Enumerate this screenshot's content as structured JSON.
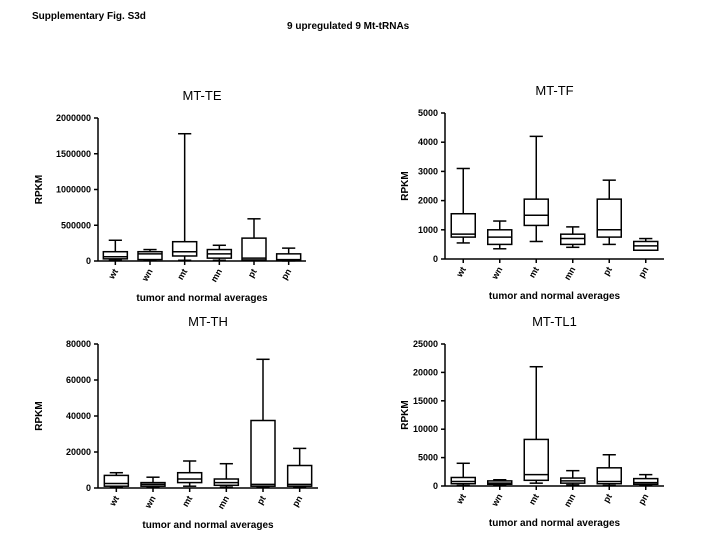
{
  "figure": {
    "label": "Supplementary Fig. S3d",
    "title": "9 upregulated 9 Mt-tRNAs"
  },
  "chart_data": [
    {
      "type": "box",
      "title": "MT-TE",
      "xlabel": "tumor and normal averages",
      "ylabel": "RPKM",
      "ylim": [
        0,
        2000000
      ],
      "yticks": [
        0,
        500000,
        1000000,
        1500000,
        2000000
      ],
      "categories": [
        "wt",
        "wn",
        "mt",
        "mn",
        "pt",
        "pn"
      ],
      "boxes": [
        {
          "min": 10000,
          "q1": 30000,
          "median": 60000,
          "q3": 130000,
          "max": 290000
        },
        {
          "min": 5000,
          "q1": 20000,
          "median": 100000,
          "q3": 130000,
          "max": 160000
        },
        {
          "min": 10000,
          "q1": 70000,
          "median": 130000,
          "q3": 270000,
          "max": 1780000
        },
        {
          "min": 10000,
          "q1": 40000,
          "median": 100000,
          "q3": 160000,
          "max": 220000
        },
        {
          "min": 5000,
          "q1": 15000,
          "median": 40000,
          "q3": 320000,
          "max": 590000
        },
        {
          "min": 2000,
          "q1": 5000,
          "median": 20000,
          "q3": 100000,
          "max": 180000
        }
      ]
    },
    {
      "type": "box",
      "title": "MT-TF",
      "xlabel": "tumor and normal averages",
      "ylabel": "RPKM",
      "ylim": [
        0,
        5000
      ],
      "yticks": [
        0,
        1000,
        2000,
        3000,
        4000,
        5000
      ],
      "categories": [
        "wt",
        "wn",
        "mt",
        "mn",
        "pt",
        "pn"
      ],
      "boxes": [
        {
          "min": 550,
          "q1": 750,
          "median": 850,
          "q3": 1550,
          "max": 3100
        },
        {
          "min": 350,
          "q1": 500,
          "median": 750,
          "q3": 1000,
          "max": 1300
        },
        {
          "min": 600,
          "q1": 1150,
          "median": 1500,
          "q3": 2050,
          "max": 4200
        },
        {
          "min": 400,
          "q1": 500,
          "median": 700,
          "q3": 850,
          "max": 1100
        },
        {
          "min": 500,
          "q1": 750,
          "median": 1000,
          "q3": 2050,
          "max": 2700
        },
        {
          "min": 300,
          "q1": 300,
          "median": 450,
          "q3": 600,
          "max": 700
        }
      ]
    },
    {
      "type": "box",
      "title": "MT-TH",
      "xlabel": "tumor and normal averages",
      "ylabel": "RPKM",
      "ylim": [
        0,
        80000
      ],
      "yticks": [
        0,
        20000,
        40000,
        60000,
        80000
      ],
      "categories": [
        "wt",
        "wn",
        "mt",
        "mn",
        "pt",
        "pn"
      ],
      "boxes": [
        {
          "min": 500,
          "q1": 1000,
          "median": 2500,
          "q3": 7000,
          "max": 8500
        },
        {
          "min": 300,
          "q1": 1000,
          "median": 2000,
          "q3": 3000,
          "max": 6000
        },
        {
          "min": 1000,
          "q1": 3000,
          "median": 5000,
          "q3": 8500,
          "max": 15000
        },
        {
          "min": 500,
          "q1": 1500,
          "median": 3000,
          "q3": 5000,
          "max": 13500
        },
        {
          "min": 500,
          "q1": 1000,
          "median": 2000,
          "q3": 37500,
          "max": 71500
        },
        {
          "min": 500,
          "q1": 1000,
          "median": 2000,
          "q3": 12500,
          "max": 22000
        }
      ]
    },
    {
      "type": "box",
      "title": "MT-TL1",
      "xlabel": "tumor and normal averages",
      "ylabel": "RPKM",
      "ylim": [
        0,
        25000
      ],
      "yticks": [
        0,
        5000,
        10000,
        15000,
        20000,
        25000
      ],
      "categories": [
        "wt",
        "wn",
        "mt",
        "mn",
        "pt",
        "pn"
      ],
      "boxes": [
        {
          "min": 100,
          "q1": 400,
          "median": 800,
          "q3": 1500,
          "max": 4000
        },
        {
          "min": 100,
          "q1": 300,
          "median": 500,
          "q3": 900,
          "max": 1100
        },
        {
          "min": 500,
          "q1": 1000,
          "median": 2000,
          "q3": 8200,
          "max": 21000
        },
        {
          "min": 200,
          "q1": 500,
          "median": 900,
          "q3": 1400,
          "max": 2700
        },
        {
          "min": 100,
          "q1": 400,
          "median": 800,
          "q3": 3200,
          "max": 5500
        },
        {
          "min": 100,
          "q1": 300,
          "median": 600,
          "q3": 1300,
          "max": 2000
        }
      ]
    }
  ]
}
